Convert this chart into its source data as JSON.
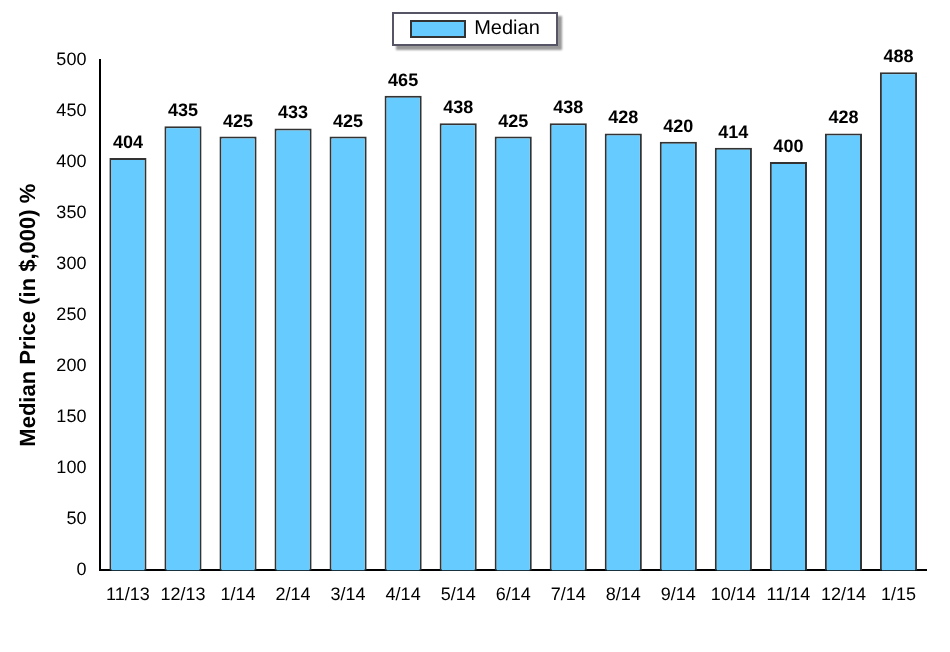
{
  "chart_data": {
    "type": "bar",
    "ylabel": "Median Price (in $,000) %",
    "categories": [
      "11/13",
      "12/13",
      "1/14",
      "2/14",
      "3/14",
      "4/14",
      "5/14",
      "6/14",
      "7/14",
      "8/14",
      "9/14",
      "10/14",
      "11/14",
      "12/14",
      "1/15"
    ],
    "series": [
      {
        "name": "Median",
        "color": "#66ccff",
        "values": [
          404,
          435,
          425,
          433,
          425,
          465,
          438,
          425,
          438,
          428,
          420,
          414,
          400,
          428,
          488
        ]
      }
    ],
    "ylim": [
      0,
      500
    ],
    "yticks": [
      0,
      50,
      100,
      150,
      200,
      250,
      300,
      350,
      400,
      450,
      500
    ],
    "grid": false,
    "legend": "top",
    "data_labels": true
  }
}
